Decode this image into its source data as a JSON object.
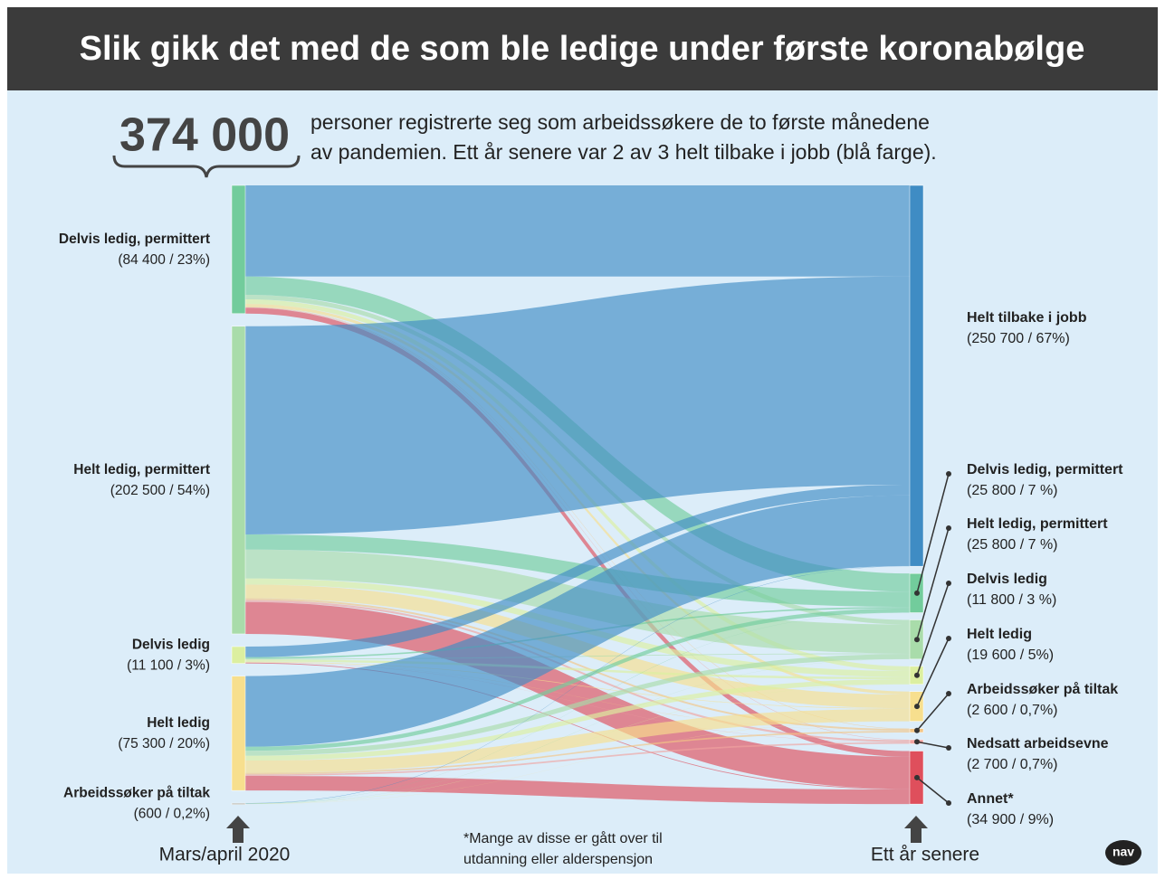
{
  "chart_data": {
    "type": "sankey",
    "title": "Slik gikk det med de som ble ledige under første koronabølge",
    "headline": "374 000",
    "description": [
      "personer registrerte seg som arbeidssøkere de to første månedene",
      "av pandemien. Ett år senere var 2 av 3 helt tilbake i jobb (blå farge)."
    ],
    "left_label": "Mars/april 2020",
    "right_label": "Ett år senere",
    "footnote": [
      "*Mange av disse er gått over til",
      "utdanning eller alderspensjon"
    ],
    "logo": "nav",
    "nodes": [
      {
        "name": "Delvis ledig, permittert",
        "value": 84400,
        "value_label": "(84 400 / 23%)",
        "side": "left",
        "color": "#72cc9c"
      },
      {
        "name": "Helt ledig, permittert",
        "value": 202500,
        "value_label": "(202 500 / 54%)",
        "side": "left",
        "color": "#a9dcaa"
      },
      {
        "name": "Delvis ledig",
        "value": 11100,
        "value_label": "(11 100 / 3%)",
        "side": "left",
        "color": "#dcefa0"
      },
      {
        "name": "Helt ledig",
        "value": 75300,
        "value_label": "(75 300 / 20%)",
        "side": "left",
        "color": "#f7df8e"
      },
      {
        "name": "Arbeidssøker på tiltak",
        "value": 600,
        "value_label": "(600 / 0,2%)",
        "side": "left",
        "color": "#b0b0a8"
      },
      {
        "name": "Helt tilbake i jobb",
        "value": 250700,
        "value_label": "(250 700 / 67%)",
        "side": "right",
        "color": "#3f8cc4"
      },
      {
        "name": "Delvis ledig, permittert",
        "value": 25800,
        "value_label": "(25 800 / 7 %)",
        "side": "right",
        "color": "#72cc9c"
      },
      {
        "name": "Helt ledig, permittert",
        "value": 25800,
        "value_label": "(25 800 / 7 %)",
        "side": "right",
        "color": "#a9dcaa"
      },
      {
        "name": "Delvis ledig",
        "value": 11800,
        "value_label": "(11 800 / 3 %)",
        "side": "right",
        "color": "#dcefa0"
      },
      {
        "name": "Helt ledig",
        "value": 19600,
        "value_label": "(19 600 / 5%)",
        "side": "right",
        "color": "#f7df8e"
      },
      {
        "name": "Arbeidssøker på tiltak",
        "value": 2600,
        "value_label": "(2 600 / 0,7%)",
        "side": "right",
        "color": "#f3c585"
      },
      {
        "name": "Nedsatt arbeidsevne",
        "value": 2700,
        "value_label": "(2 700 / 0,7%)",
        "side": "right",
        "color": "#f0a3a0"
      },
      {
        "name": "Annet*",
        "value": 34900,
        "value_label": "(34 900 / 9%)",
        "side": "right",
        "color": "#df4f5c"
      }
    ],
    "flows": [
      {
        "source": 0,
        "target": 5,
        "value": 60000
      },
      {
        "source": 0,
        "target": 6,
        "value": 12000
      },
      {
        "source": 0,
        "target": 7,
        "value": 3000
      },
      {
        "source": 0,
        "target": 8,
        "value": 3000
      },
      {
        "source": 0,
        "target": 9,
        "value": 2000
      },
      {
        "source": 0,
        "target": 10,
        "value": 300
      },
      {
        "source": 0,
        "target": 11,
        "value": 300
      },
      {
        "source": 0,
        "target": 12,
        "value": 3800
      },
      {
        "source": 1,
        "target": 5,
        "value": 137000
      },
      {
        "source": 1,
        "target": 6,
        "value": 10000
      },
      {
        "source": 1,
        "target": 7,
        "value": 19000
      },
      {
        "source": 1,
        "target": 8,
        "value": 4000
      },
      {
        "source": 1,
        "target": 9,
        "value": 9000
      },
      {
        "source": 1,
        "target": 10,
        "value": 1200
      },
      {
        "source": 1,
        "target": 11,
        "value": 1300
      },
      {
        "source": 1,
        "target": 12,
        "value": 21000
      },
      {
        "source": 2,
        "target": 5,
        "value": 7000
      },
      {
        "source": 2,
        "target": 6,
        "value": 1000
      },
      {
        "source": 2,
        "target": 7,
        "value": 500
      },
      {
        "source": 2,
        "target": 8,
        "value": 1500
      },
      {
        "source": 2,
        "target": 9,
        "value": 400
      },
      {
        "source": 2,
        "target": 10,
        "value": 100
      },
      {
        "source": 2,
        "target": 11,
        "value": 100
      },
      {
        "source": 2,
        "target": 12,
        "value": 500
      },
      {
        "source": 3,
        "target": 5,
        "value": 46500
      },
      {
        "source": 3,
        "target": 6,
        "value": 2700
      },
      {
        "source": 3,
        "target": 7,
        "value": 3200
      },
      {
        "source": 3,
        "target": 8,
        "value": 3200
      },
      {
        "source": 3,
        "target": 9,
        "value": 8100
      },
      {
        "source": 3,
        "target": 10,
        "value": 1000
      },
      {
        "source": 3,
        "target": 11,
        "value": 1000
      },
      {
        "source": 3,
        "target": 12,
        "value": 9600
      },
      {
        "source": 4,
        "target": 5,
        "value": 200
      },
      {
        "source": 4,
        "target": 6,
        "value": 100
      },
      {
        "source": 4,
        "target": 7,
        "value": 100
      },
      {
        "source": 4,
        "target": 8,
        "value": 100
      },
      {
        "source": 4,
        "target": 9,
        "value": 100
      }
    ]
  }
}
